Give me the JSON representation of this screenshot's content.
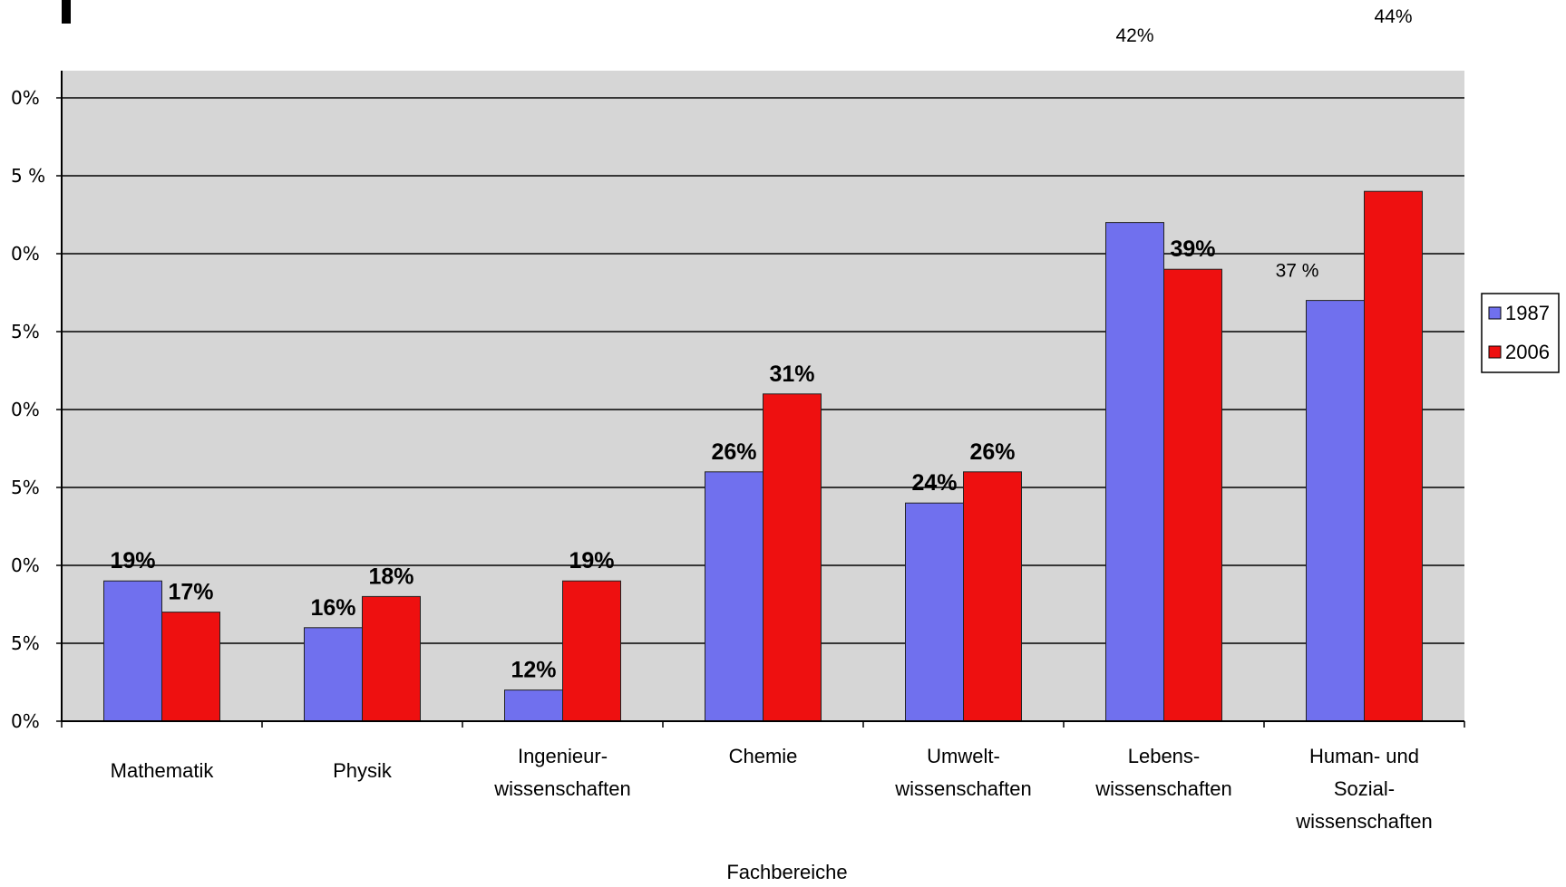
{
  "chart_data": {
    "type": "bar",
    "xlabel": "Fachbereiche",
    "categories": [
      [
        "Mathematik"
      ],
      [
        "Physik"
      ],
      [
        "Ingenieur-",
        "wissenschaften"
      ],
      [
        "Chemie"
      ],
      [
        "Umwelt-",
        "wissenschaften"
      ],
      [
        "Lebens-",
        "wissenschaften"
      ],
      [
        "Human- und",
        "Sozial-",
        "wissenschaften"
      ]
    ],
    "series": [
      {
        "name": "1987",
        "color": "#7070ee",
        "values": [
          19,
          16,
          12,
          26,
          24,
          42,
          37
        ],
        "labels": [
          "19%",
          "16%",
          "12%",
          "26%",
          "24%",
          "42%",
          "37 %"
        ]
      },
      {
        "name": "2006",
        "color": "#ee1010",
        "values": [
          17,
          18,
          19,
          31,
          26,
          39,
          44
        ],
        "labels": [
          "17%",
          "18%",
          "19%",
          "31%",
          "26%",
          "39%",
          "44%"
        ]
      }
    ],
    "y_tick_labels": [
      "0%",
      "5%",
      "0%",
      "5%",
      "0%",
      "5%",
      "0%",
      "5 %",
      "0%"
    ],
    "ylim": [
      10,
      45
    ],
    "grid": true,
    "legend_position": "right"
  }
}
